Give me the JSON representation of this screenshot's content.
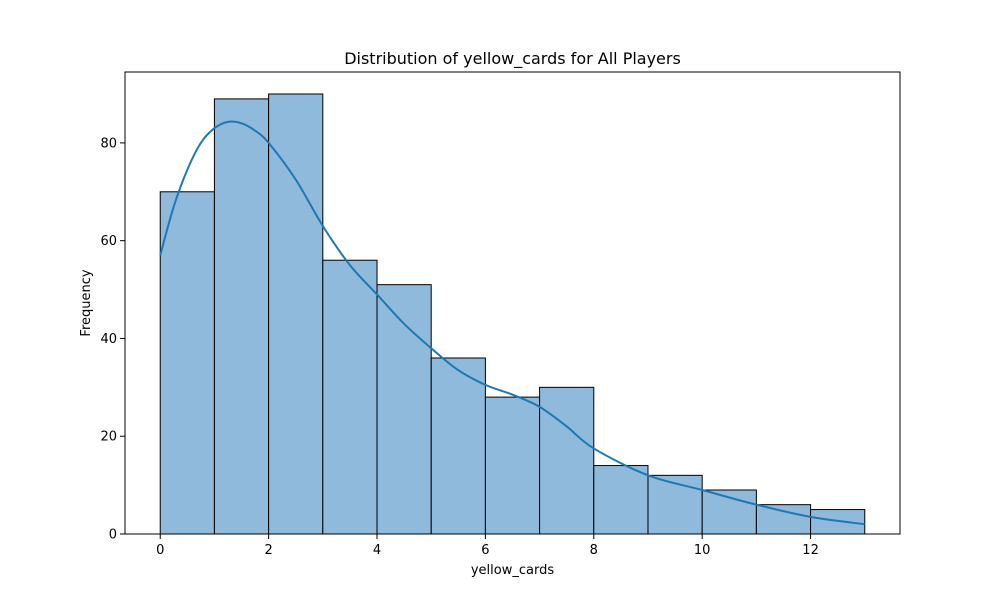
{
  "chart_data": {
    "type": "bar",
    "title": "Distribution of yellow_cards for All Players",
    "xlabel": "yellow_cards",
    "ylabel": "Frequency",
    "bin_edges": [
      0,
      1,
      2,
      3,
      4,
      5,
      6,
      7,
      8,
      9,
      10,
      11,
      12,
      13
    ],
    "values": [
      70,
      89,
      90,
      56,
      51,
      36,
      28,
      30,
      14,
      12,
      9,
      6,
      5
    ],
    "xlim": [
      -0.65,
      13.65
    ],
    "ylim": [
      0,
      94.5
    ],
    "xticks": [
      0,
      2,
      4,
      6,
      8,
      10,
      12
    ],
    "yticks": [
      0,
      20,
      40,
      60,
      80
    ],
    "grid": false,
    "kde": {
      "x": [
        0,
        0.25,
        0.5,
        0.75,
        1,
        1.25,
        1.5,
        1.75,
        2,
        2.5,
        3,
        3.5,
        4,
        4.5,
        5,
        5.5,
        6,
        6.5,
        7,
        7.5,
        8,
        9,
        10,
        11,
        12,
        13
      ],
      "y": [
        57,
        67,
        74.5,
        80,
        83,
        84.3,
        84,
        82.5,
        80,
        72.5,
        63,
        55,
        49,
        43,
        38,
        33.5,
        30.5,
        28.5,
        26,
        22,
        17.5,
        12,
        9,
        6,
        3.5,
        2
      ]
    },
    "colors": {
      "bar_fill": "#8fbadb",
      "bar_edge": "#000000",
      "kde_line": "#1f77b4"
    }
  }
}
